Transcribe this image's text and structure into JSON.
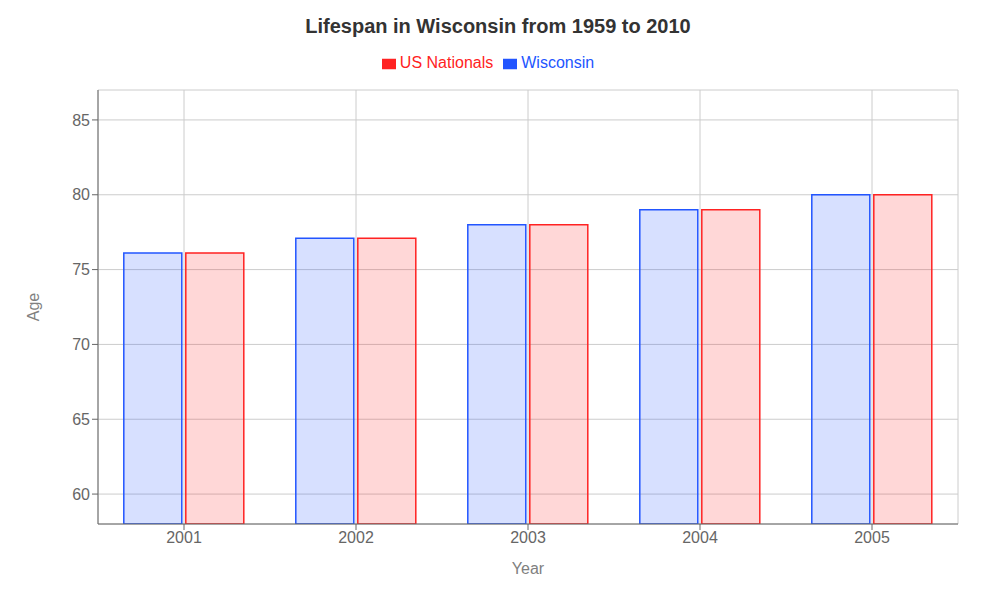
{
  "chart_data": {
    "type": "bar",
    "title": "Lifespan in Wisconsin from 1959 to 2010",
    "x_label": "Year",
    "y_label": "Age",
    "categories": [
      "2001",
      "2002",
      "2003",
      "2004",
      "2005"
    ],
    "series": [
      {
        "name": "Wisconsin",
        "color": "#2255ff",
        "values": [
          76.1,
          77.1,
          78.0,
          79.0,
          80.0
        ]
      },
      {
        "name": "US Nationals",
        "color": "#ff2222",
        "values": [
          76.1,
          77.1,
          78.0,
          79.0,
          80.0
        ]
      }
    ],
    "ylim": [
      58,
      87
    ],
    "yticks": [
      60,
      65,
      70,
      75,
      80,
      85
    ],
    "grid": true,
    "legend": "top"
  }
}
